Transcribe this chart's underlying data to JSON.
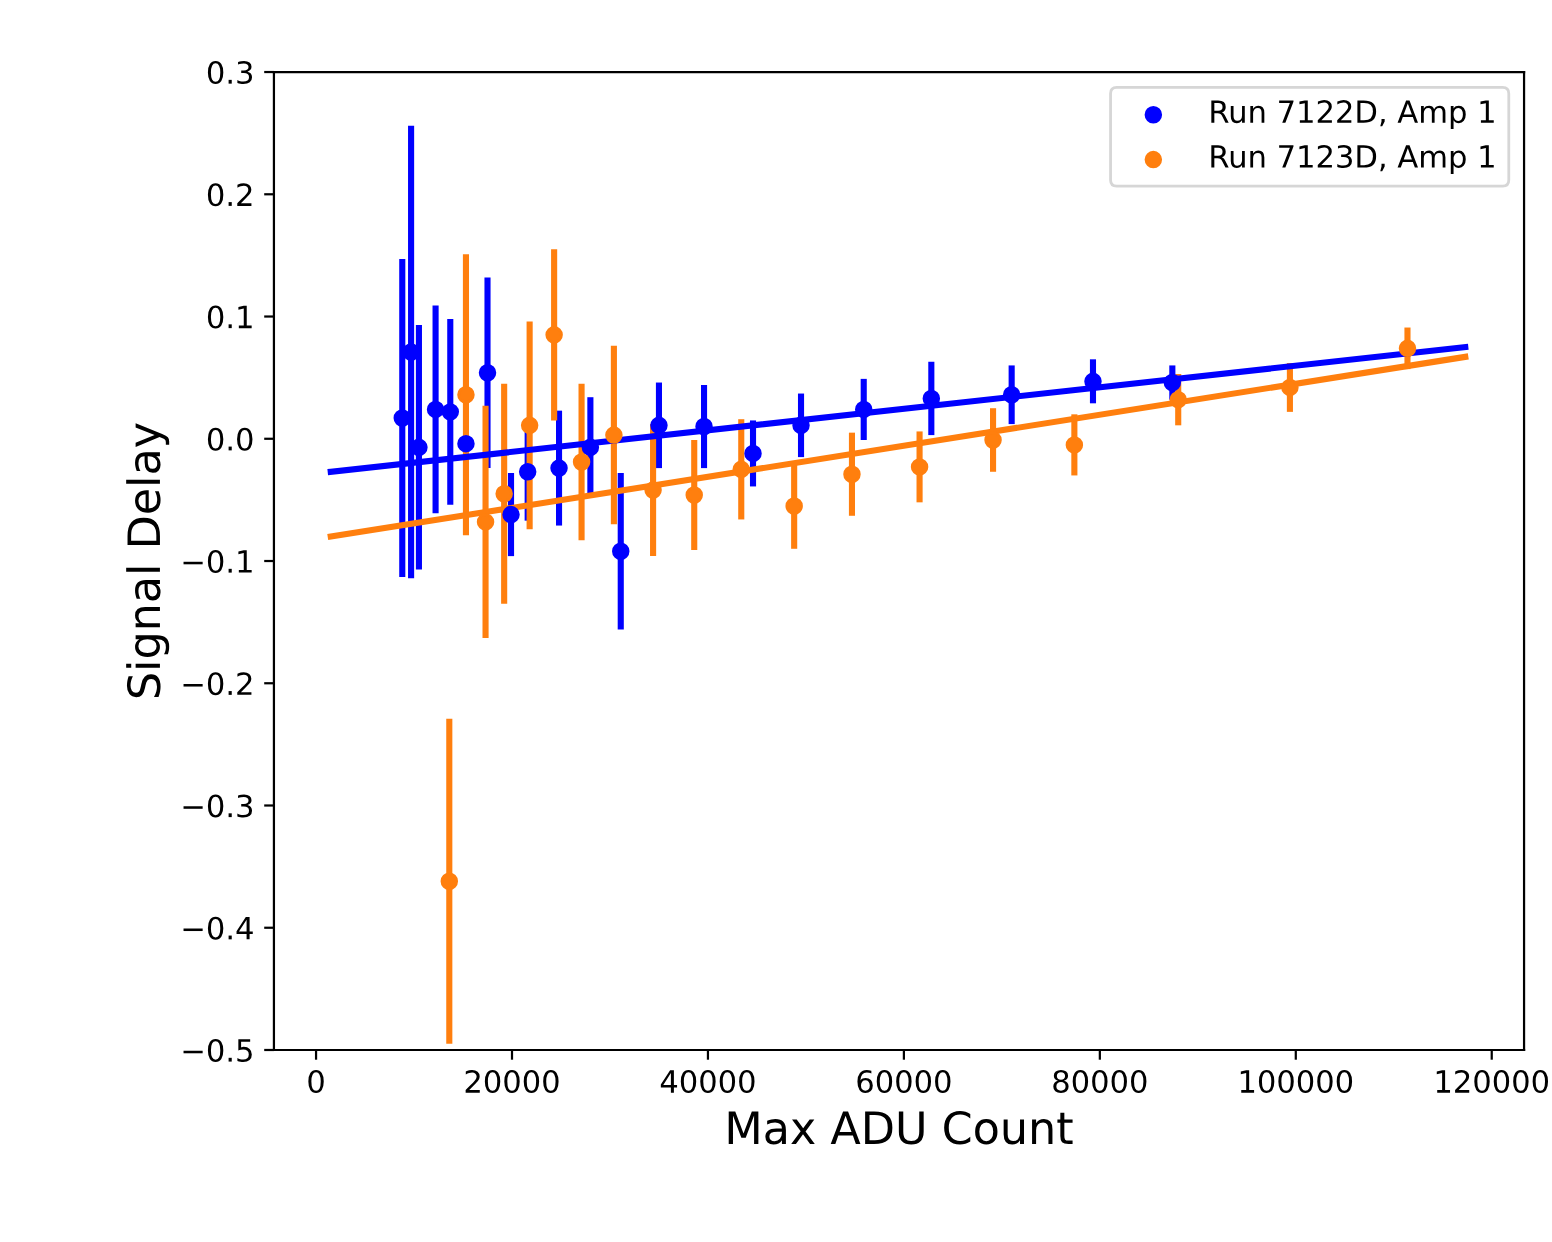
{
  "chart_data": {
    "type": "scatter",
    "xlabel": "Max ADU Count",
    "ylabel": "Signal Delay",
    "xlim": [
      -4300,
      123300
    ],
    "ylim": [
      -0.5,
      0.3
    ],
    "xticks": [
      0,
      20000,
      40000,
      60000,
      80000,
      100000,
      120000
    ],
    "yticks": [
      {
        "value": -0.5,
        "label": "−0.5"
      },
      {
        "value": -0.4,
        "label": "−0.4"
      },
      {
        "value": -0.3,
        "label": "−0.3"
      },
      {
        "value": -0.2,
        "label": "−0.2"
      },
      {
        "value": -0.1,
        "label": "−0.1"
      },
      {
        "value": 0.0,
        "label": "0.0"
      },
      {
        "value": 0.1,
        "label": "0.1"
      },
      {
        "value": 0.2,
        "label": "0.2"
      },
      {
        "value": 0.3,
        "label": "0.3"
      }
    ],
    "marker": "circle",
    "grid": false,
    "legend": "top right",
    "series": [
      {
        "name": "Run 7122D, Amp 1",
        "color": "#0000ff",
        "x": [
          8800,
          9700,
          10500,
          12200,
          13700,
          15300,
          17500,
          19900,
          21600,
          24800,
          28000,
          31100,
          35000,
          39600,
          44600,
          49500,
          55900,
          62800,
          71000,
          79300,
          87400
        ],
        "values": [
          0.017,
          0.071,
          -0.007,
          0.024,
          0.022,
          -0.004,
          0.054,
          -0.062,
          -0.027,
          -0.024,
          -0.007,
          -0.092,
          0.011,
          0.01,
          -0.012,
          0.011,
          0.024,
          0.033,
          0.036,
          0.047,
          0.046
        ],
        "errors": [
          0.13,
          0.185,
          0.1,
          0.085,
          0.076,
          null,
          0.078,
          0.034,
          0.04,
          0.047,
          0.041,
          0.064,
          0.035,
          0.034,
          0.027,
          0.026,
          0.025,
          0.03,
          0.024,
          0.018,
          0.014
        ]
      },
      {
        "name": "Run 7123D, Amp 1",
        "color": "#ff7f0e",
        "x": [
          13600,
          15300,
          17300,
          19200,
          21800,
          24300,
          27100,
          30400,
          34400,
          38600,
          43400,
          48800,
          54700,
          61600,
          69100,
          77400,
          88000,
          99400,
          111400
        ],
        "values": [
          -0.362,
          0.036,
          -0.068,
          -0.045,
          0.011,
          0.085,
          -0.019,
          0.003,
          -0.042,
          -0.046,
          -0.025,
          -0.055,
          -0.029,
          -0.023,
          -0.001,
          -0.005,
          0.032,
          0.042,
          0.074
        ],
        "errors": [
          0.133,
          0.115,
          0.095,
          0.09,
          0.085,
          0.07,
          0.064,
          0.073,
          0.054,
          0.045,
          0.041,
          0.035,
          0.034,
          0.029,
          0.026,
          0.025,
          0.021,
          0.02,
          0.017
        ]
      },
      {
        "type": "line",
        "color": "#0000ff",
        "marker": "none",
        "x": [
          1500,
          117300
        ],
        "values": [
          -0.027,
          0.075
        ]
      },
      {
        "type": "line",
        "color": "#ff7f0e",
        "marker": "none",
        "x": [
          1500,
          117300
        ],
        "values": [
          -0.08,
          0.067
        ]
      }
    ]
  }
}
